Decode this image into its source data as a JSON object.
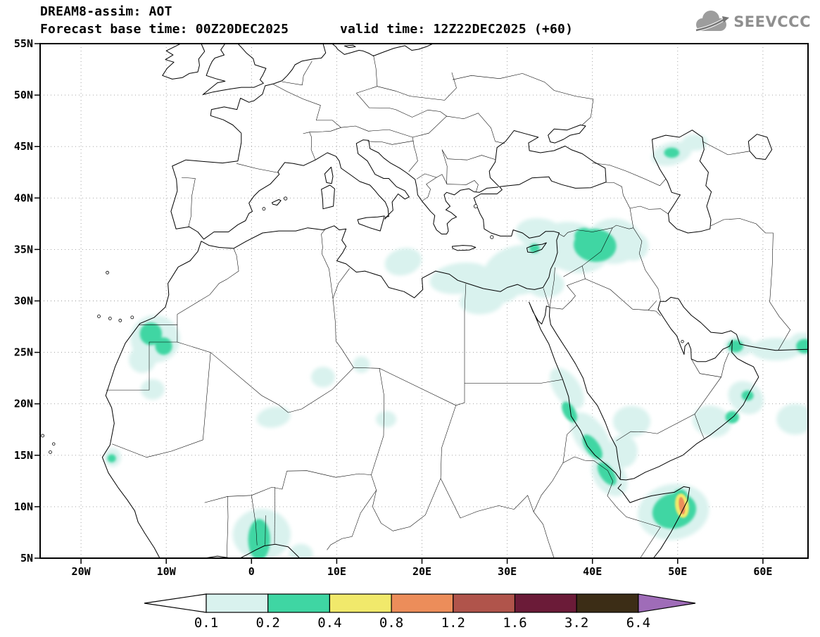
{
  "header": {
    "title": "DREAM8-assim: AOT",
    "base_label": "Forecast base time: 00Z20DEC2025",
    "valid_label": "valid time: 12Z22DEC2025 (+60)"
  },
  "logo": {
    "text": "SEEVCCC",
    "color": "#8f8f8f"
  },
  "map": {
    "y_ticks": [
      "55N",
      "50N",
      "45N",
      "40N",
      "35N",
      "30N",
      "25N",
      "20N",
      "15N",
      "10N",
      "5N"
    ],
    "y_lats": [
      55,
      50,
      45,
      40,
      35,
      30,
      25,
      20,
      15,
      10,
      5
    ],
    "x_ticks": [
      "20W",
      "10W",
      "0",
      "10E",
      "20E",
      "30E",
      "40E",
      "50E",
      "60E"
    ],
    "x_lons": [
      -20,
      -10,
      0,
      10,
      20,
      30,
      40,
      50,
      60
    ]
  },
  "colorbar": {
    "labels": [
      "0.1",
      "0.2",
      "0.4",
      "0.8",
      "1.2",
      "1.6",
      "3.2",
      "6.4"
    ],
    "segment_colors": [
      "#ffffff",
      "#d9f2ee",
      "#3fd6a3",
      "#f1e96b",
      "#ec8d5a",
      "#b0544b",
      "#6b1b38",
      "#3c2d16",
      "#9f6cb8"
    ]
  },
  "chart_data": {
    "type": "heatmap",
    "title": "DREAM8-assim: AOT",
    "variable": "Aerosol Optical Thickness (AOT), filled-contour forecast map",
    "model": "DREAM8-assim",
    "source": "SEEVCCC",
    "forecast_base_time": "00Z20DEC2025",
    "valid_time": "12Z22DEC2025",
    "forecast_hour": "+60",
    "lon_range": [
      "25W",
      "65E"
    ],
    "lat_range": [
      "5N",
      "55N"
    ],
    "x_ticks": [
      "20W",
      "10W",
      "0",
      "10E",
      "20E",
      "30E",
      "40E",
      "50E",
      "60E"
    ],
    "y_ticks": [
      "55N",
      "50N",
      "45N",
      "40N",
      "35N",
      "30N",
      "25N",
      "20N",
      "15N",
      "10N",
      "5N"
    ],
    "scale_levels": [
      0.1,
      0.2,
      0.4,
      0.8,
      1.2,
      1.6,
      3.2,
      6.4
    ],
    "scale_colors": [
      "#ffffff",
      "#d9f2ee",
      "#3fd6a3",
      "#f1e96b",
      "#ec8d5a",
      "#b0544b",
      "#6b1b38",
      "#3c2d16",
      "#9f6cb8"
    ],
    "legend_position": "bottom",
    "grid": "dotted",
    "regions": [
      {
        "area": "NE Syria / N Iraq (≈40E, 35N)",
        "aot": "0.2-0.4"
      },
      {
        "area": "Eastern Mediterranean & Levant (20E-45E, 30N-37N)",
        "aot": "0.1-0.2"
      },
      {
        "area": "Western Sahara / N Mauritania (13W-9W, 24N-28N)",
        "aot": "0.2-0.4"
      },
      {
        "area": "Central Sahara patches (0-16E, 18N-24N)",
        "aot": "0.1-0.2"
      },
      {
        "area": "Gulf of Guinea - Togo/Benin (3W-4E, 5N-9N)",
        "aot": "0.2-0.4"
      },
      {
        "area": "Red Sea & Eritrean coast (36E-43E, 12N-22N)",
        "aot": "0.2-0.4"
      },
      {
        "area": "Horn of Africa / NE Somalia (45E-52E, 6N-12N)",
        "aot": "0.8-1.2 peak"
      },
      {
        "area": "Strait of Hormuz / Gulf of Oman (56E-58E, 25N-26N)",
        "aot": "0.2-0.4"
      },
      {
        "area": "Arabian Sea off Oman (52E-60E, 16N-21N)",
        "aot": "0.2-0.4"
      },
      {
        "area": "NW Caspian (47E-53E, 43N-46N)",
        "aot": "0.1-0.2"
      },
      {
        "area": "Makran coast (56E-65E, 24N-27N)",
        "aot": "0.1-0.2"
      },
      {
        "area": "Senegal coast (≈16W, 15N)",
        "aot": "0.2-0.4"
      }
    ]
  }
}
